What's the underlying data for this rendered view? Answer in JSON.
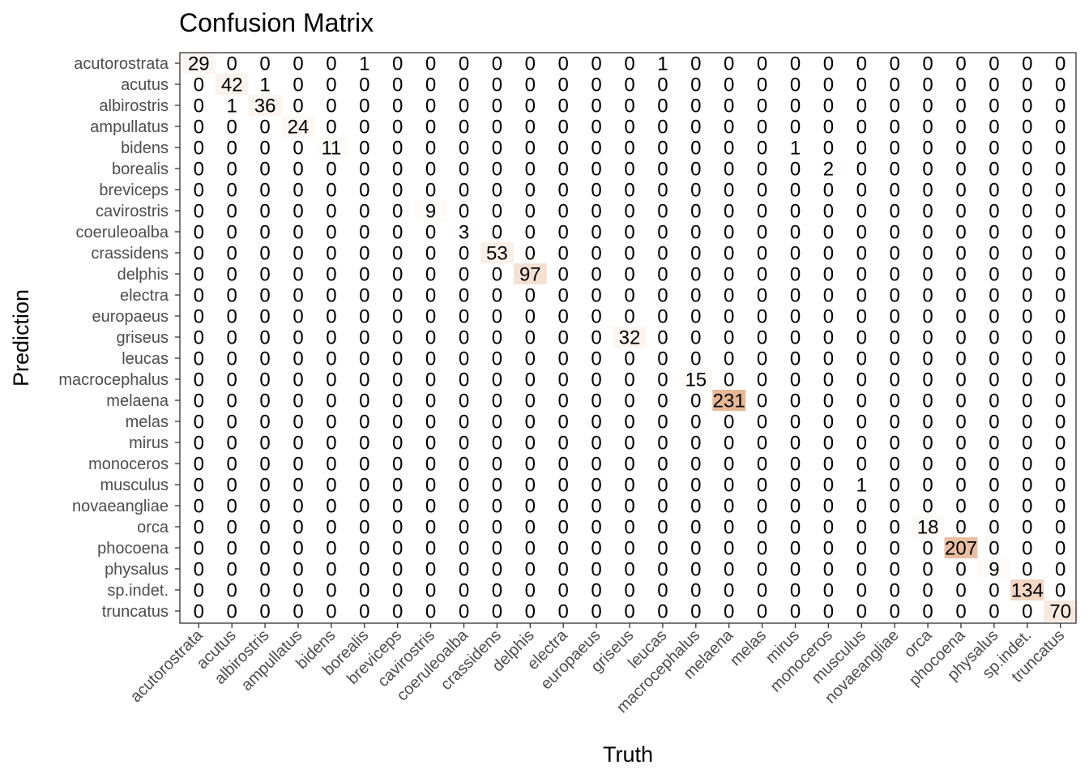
{
  "chart_data": {
    "type": "heatmap",
    "title": "Confusion Matrix",
    "xlabel": "Truth",
    "ylabel": "Prediction",
    "labels": [
      "acutorostrata",
      "acutus",
      "albirostris",
      "ampullatus",
      "bidens",
      "borealis",
      "breviceps",
      "cavirostris",
      "coeruleoalba",
      "crassidens",
      "delphis",
      "electra",
      "europaeus",
      "griseus",
      "leucas",
      "macrocephalus",
      "melaena",
      "melas",
      "mirus",
      "monoceros",
      "musculus",
      "novaeangliae",
      "orca",
      "phocoena",
      "physalus",
      "sp.indet.",
      "truncatus"
    ],
    "matrix": [
      [
        29,
        0,
        0,
        0,
        0,
        1,
        0,
        0,
        0,
        0,
        0,
        0,
        0,
        0,
        1,
        0,
        0,
        0,
        0,
        0,
        0,
        0,
        0,
        0,
        0,
        0,
        0
      ],
      [
        0,
        42,
        1,
        0,
        0,
        0,
        0,
        0,
        0,
        0,
        0,
        0,
        0,
        0,
        0,
        0,
        0,
        0,
        0,
        0,
        0,
        0,
        0,
        0,
        0,
        0,
        0
      ],
      [
        0,
        1,
        36,
        0,
        0,
        0,
        0,
        0,
        0,
        0,
        0,
        0,
        0,
        0,
        0,
        0,
        0,
        0,
        0,
        0,
        0,
        0,
        0,
        0,
        0,
        0,
        0
      ],
      [
        0,
        0,
        0,
        24,
        0,
        0,
        0,
        0,
        0,
        0,
        0,
        0,
        0,
        0,
        0,
        0,
        0,
        0,
        0,
        0,
        0,
        0,
        0,
        0,
        0,
        0,
        0
      ],
      [
        0,
        0,
        0,
        0,
        11,
        0,
        0,
        0,
        0,
        0,
        0,
        0,
        0,
        0,
        0,
        0,
        0,
        0,
        1,
        0,
        0,
        0,
        0,
        0,
        0,
        0,
        0
      ],
      [
        0,
        0,
        0,
        0,
        0,
        0,
        0,
        0,
        0,
        0,
        0,
        0,
        0,
        0,
        0,
        0,
        0,
        0,
        0,
        2,
        0,
        0,
        0,
        0,
        0,
        0,
        0
      ],
      [
        0,
        0,
        0,
        0,
        0,
        0,
        0,
        0,
        0,
        0,
        0,
        0,
        0,
        0,
        0,
        0,
        0,
        0,
        0,
        0,
        0,
        0,
        0,
        0,
        0,
        0,
        0
      ],
      [
        0,
        0,
        0,
        0,
        0,
        0,
        0,
        9,
        0,
        0,
        0,
        0,
        0,
        0,
        0,
        0,
        0,
        0,
        0,
        0,
        0,
        0,
        0,
        0,
        0,
        0,
        0
      ],
      [
        0,
        0,
        0,
        0,
        0,
        0,
        0,
        0,
        3,
        0,
        0,
        0,
        0,
        0,
        0,
        0,
        0,
        0,
        0,
        0,
        0,
        0,
        0,
        0,
        0,
        0,
        0
      ],
      [
        0,
        0,
        0,
        0,
        0,
        0,
        0,
        0,
        0,
        53,
        0,
        0,
        0,
        0,
        0,
        0,
        0,
        0,
        0,
        0,
        0,
        0,
        0,
        0,
        0,
        0,
        0
      ],
      [
        0,
        0,
        0,
        0,
        0,
        0,
        0,
        0,
        0,
        0,
        97,
        0,
        0,
        0,
        0,
        0,
        0,
        0,
        0,
        0,
        0,
        0,
        0,
        0,
        0,
        0,
        0
      ],
      [
        0,
        0,
        0,
        0,
        0,
        0,
        0,
        0,
        0,
        0,
        0,
        0,
        0,
        0,
        0,
        0,
        0,
        0,
        0,
        0,
        0,
        0,
        0,
        0,
        0,
        0,
        0
      ],
      [
        0,
        0,
        0,
        0,
        0,
        0,
        0,
        0,
        0,
        0,
        0,
        0,
        0,
        0,
        0,
        0,
        0,
        0,
        0,
        0,
        0,
        0,
        0,
        0,
        0,
        0,
        0
      ],
      [
        0,
        0,
        0,
        0,
        0,
        0,
        0,
        0,
        0,
        0,
        0,
        0,
        0,
        32,
        0,
        0,
        0,
        0,
        0,
        0,
        0,
        0,
        0,
        0,
        0,
        0,
        0
      ],
      [
        0,
        0,
        0,
        0,
        0,
        0,
        0,
        0,
        0,
        0,
        0,
        0,
        0,
        0,
        0,
        0,
        0,
        0,
        0,
        0,
        0,
        0,
        0,
        0,
        0,
        0,
        0
      ],
      [
        0,
        0,
        0,
        0,
        0,
        0,
        0,
        0,
        0,
        0,
        0,
        0,
        0,
        0,
        0,
        15,
        0,
        0,
        0,
        0,
        0,
        0,
        0,
        0,
        0,
        0,
        0
      ],
      [
        0,
        0,
        0,
        0,
        0,
        0,
        0,
        0,
        0,
        0,
        0,
        0,
        0,
        0,
        0,
        0,
        231,
        0,
        0,
        0,
        0,
        0,
        0,
        0,
        0,
        0,
        0
      ],
      [
        0,
        0,
        0,
        0,
        0,
        0,
        0,
        0,
        0,
        0,
        0,
        0,
        0,
        0,
        0,
        0,
        0,
        0,
        0,
        0,
        0,
        0,
        0,
        0,
        0,
        0,
        0
      ],
      [
        0,
        0,
        0,
        0,
        0,
        0,
        0,
        0,
        0,
        0,
        0,
        0,
        0,
        0,
        0,
        0,
        0,
        0,
        0,
        0,
        0,
        0,
        0,
        0,
        0,
        0,
        0
      ],
      [
        0,
        0,
        0,
        0,
        0,
        0,
        0,
        0,
        0,
        0,
        0,
        0,
        0,
        0,
        0,
        0,
        0,
        0,
        0,
        0,
        0,
        0,
        0,
        0,
        0,
        0,
        0
      ],
      [
        0,
        0,
        0,
        0,
        0,
        0,
        0,
        0,
        0,
        0,
        0,
        0,
        0,
        0,
        0,
        0,
        0,
        0,
        0,
        0,
        1,
        0,
        0,
        0,
        0,
        0,
        0
      ],
      [
        0,
        0,
        0,
        0,
        0,
        0,
        0,
        0,
        0,
        0,
        0,
        0,
        0,
        0,
        0,
        0,
        0,
        0,
        0,
        0,
        0,
        0,
        0,
        0,
        0,
        0,
        0
      ],
      [
        0,
        0,
        0,
        0,
        0,
        0,
        0,
        0,
        0,
        0,
        0,
        0,
        0,
        0,
        0,
        0,
        0,
        0,
        0,
        0,
        0,
        0,
        18,
        0,
        0,
        0,
        0
      ],
      [
        0,
        0,
        0,
        0,
        0,
        0,
        0,
        0,
        0,
        0,
        0,
        0,
        0,
        0,
        0,
        0,
        0,
        0,
        0,
        0,
        0,
        0,
        0,
        207,
        0,
        0,
        0
      ],
      [
        0,
        0,
        0,
        0,
        0,
        0,
        0,
        0,
        0,
        0,
        0,
        0,
        0,
        0,
        0,
        0,
        0,
        0,
        0,
        0,
        0,
        0,
        0,
        0,
        9,
        0,
        0
      ],
      [
        0,
        0,
        0,
        0,
        0,
        0,
        0,
        0,
        0,
        0,
        0,
        0,
        0,
        0,
        0,
        0,
        0,
        0,
        0,
        0,
        0,
        0,
        0,
        0,
        0,
        134,
        0
      ],
      [
        0,
        0,
        0,
        0,
        0,
        0,
        0,
        0,
        0,
        0,
        0,
        0,
        0,
        0,
        0,
        0,
        0,
        0,
        0,
        0,
        0,
        0,
        0,
        0,
        0,
        0,
        70
      ]
    ],
    "color_low": "#ffffff",
    "color_high": "#e8b896",
    "panel_border": "#333333",
    "grid": false,
    "legend": "none"
  }
}
